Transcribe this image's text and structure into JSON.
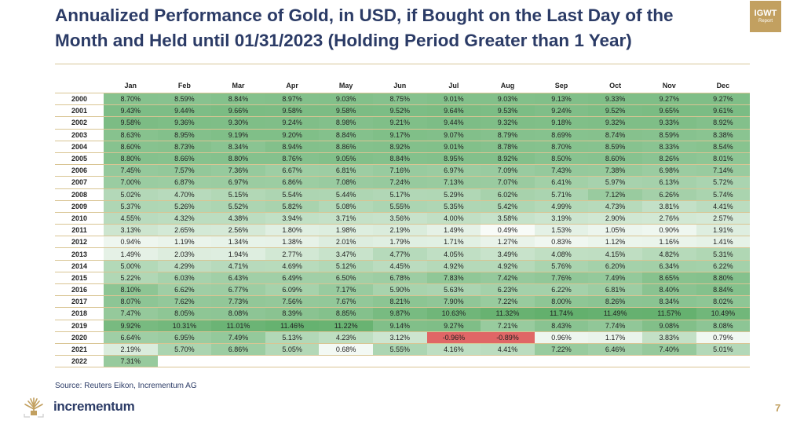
{
  "header": {
    "title": "Annualized Performance of Gold, in USD, if Bought on the Last Day of the Month and Held until 01/31/2023 (Holding Period Greater than 1 Year)",
    "badge_line1": "IGWT",
    "badge_line2": "Report"
  },
  "footer": {
    "source": "Source: Reuters Eikon, Incrementum AG",
    "brand": "incrementum",
    "page_number": "7"
  },
  "colors": {
    "title": "#2b3b66",
    "accent_gold": "#c2a060",
    "high": "#63b06d",
    "low": "#f8fbf8",
    "negative": "#e06666"
  },
  "chart_data": {
    "type": "heatmap",
    "title": "Annualized Performance of Gold, in USD, if Bought on the Last Day of the Month and Held until 01/31/2023 (Holding Period Greater than 1 Year)",
    "columns": [
      "Jan",
      "Feb",
      "Mar",
      "Apr",
      "May",
      "Jun",
      "Jul",
      "Aug",
      "Sep",
      "Oct",
      "Nov",
      "Dec"
    ],
    "unit": "%",
    "rows": [
      {
        "year": "2000",
        "values": [
          8.7,
          8.59,
          8.84,
          8.97,
          9.03,
          8.75,
          9.01,
          9.03,
          9.13,
          9.33,
          9.27,
          9.27
        ]
      },
      {
        "year": "2001",
        "values": [
          9.43,
          9.44,
          9.66,
          9.58,
          9.58,
          9.52,
          9.64,
          9.53,
          9.24,
          9.52,
          9.65,
          9.61
        ]
      },
      {
        "year": "2002",
        "values": [
          9.58,
          9.36,
          9.3,
          9.24,
          8.98,
          9.21,
          9.44,
          9.32,
          9.18,
          9.32,
          9.33,
          8.92
        ]
      },
      {
        "year": "2003",
        "values": [
          8.63,
          8.95,
          9.19,
          9.2,
          8.84,
          9.17,
          9.07,
          8.79,
          8.69,
          8.74,
          8.59,
          8.38
        ]
      },
      {
        "year": "2004",
        "values": [
          8.6,
          8.73,
          8.34,
          8.94,
          8.86,
          8.92,
          9.01,
          8.78,
          8.7,
          8.59,
          8.33,
          8.54
        ]
      },
      {
        "year": "2005",
        "values": [
          8.8,
          8.66,
          8.8,
          8.76,
          9.05,
          8.84,
          8.95,
          8.92,
          8.5,
          8.6,
          8.26,
          8.01
        ]
      },
      {
        "year": "2006",
        "values": [
          7.45,
          7.57,
          7.36,
          6.67,
          6.81,
          7.16,
          6.97,
          7.09,
          7.43,
          7.38,
          6.98,
          7.14
        ]
      },
      {
        "year": "2007",
        "values": [
          7.0,
          6.87,
          6.97,
          6.86,
          7.08,
          7.24,
          7.13,
          7.07,
          6.41,
          5.97,
          6.13,
          5.72
        ]
      },
      {
        "year": "2008",
        "values": [
          5.02,
          4.7,
          5.15,
          5.54,
          5.44,
          5.17,
          5.29,
          6.02,
          5.71,
          7.12,
          6.26,
          5.74
        ]
      },
      {
        "year": "2009",
        "values": [
          5.37,
          5.26,
          5.52,
          5.82,
          5.08,
          5.55,
          5.35,
          5.42,
          4.99,
          4.73,
          3.81,
          4.41
        ]
      },
      {
        "year": "2010",
        "values": [
          4.55,
          4.32,
          4.38,
          3.94,
          3.71,
          3.56,
          4.0,
          3.58,
          3.19,
          2.9,
          2.76,
          2.57
        ]
      },
      {
        "year": "2011",
        "values": [
          3.13,
          2.65,
          2.56,
          1.8,
          1.98,
          2.19,
          1.49,
          0.49,
          1.53,
          1.05,
          0.9,
          1.91
        ]
      },
      {
        "year": "2012",
        "values": [
          0.94,
          1.19,
          1.34,
          1.38,
          2.01,
          1.79,
          1.71,
          1.27,
          0.83,
          1.12,
          1.16,
          1.41
        ]
      },
      {
        "year": "2013",
        "values": [
          1.49,
          2.03,
          1.94,
          2.77,
          3.47,
          4.77,
          4.05,
          3.49,
          4.08,
          4.15,
          4.82,
          5.31
        ]
      },
      {
        "year": "2014",
        "values": [
          5.0,
          4.29,
          4.71,
          4.69,
          5.12,
          4.45,
          4.92,
          4.92,
          5.76,
          6.2,
          6.34,
          6.22
        ]
      },
      {
        "year": "2015",
        "values": [
          5.22,
          6.03,
          6.43,
          6.49,
          6.5,
          6.78,
          7.83,
          7.42,
          7.76,
          7.49,
          8.65,
          8.8
        ]
      },
      {
        "year": "2016",
        "values": [
          8.1,
          6.62,
          6.77,
          6.09,
          7.17,
          5.9,
          5.63,
          6.23,
          6.22,
          6.81,
          8.4,
          8.84
        ]
      },
      {
        "year": "2017",
        "values": [
          8.07,
          7.62,
          7.73,
          7.56,
          7.67,
          8.21,
          7.9,
          7.22,
          8.0,
          8.26,
          8.34,
          8.02
        ]
      },
      {
        "year": "2018",
        "values": [
          7.47,
          8.05,
          8.08,
          8.39,
          8.85,
          9.87,
          10.63,
          11.32,
          11.74,
          11.49,
          11.57,
          10.49
        ]
      },
      {
        "year": "2019",
        "values": [
          9.92,
          10.31,
          11.01,
          11.46,
          11.22,
          9.14,
          9.27,
          7.21,
          8.43,
          7.74,
          9.08,
          8.08
        ]
      },
      {
        "year": "2020",
        "values": [
          6.64,
          6.95,
          7.49,
          5.13,
          4.23,
          3.12,
          -0.96,
          -0.89,
          0.96,
          1.17,
          3.83,
          0.79
        ]
      },
      {
        "year": "2021",
        "values": [
          2.19,
          5.7,
          6.86,
          5.05,
          0.68,
          5.55,
          4.16,
          4.41,
          7.22,
          6.46,
          7.4,
          5.01
        ]
      },
      {
        "year": "2022",
        "values": [
          7.31,
          null,
          null,
          null,
          null,
          null,
          null,
          null,
          null,
          null,
          null,
          null
        ]
      }
    ]
  }
}
